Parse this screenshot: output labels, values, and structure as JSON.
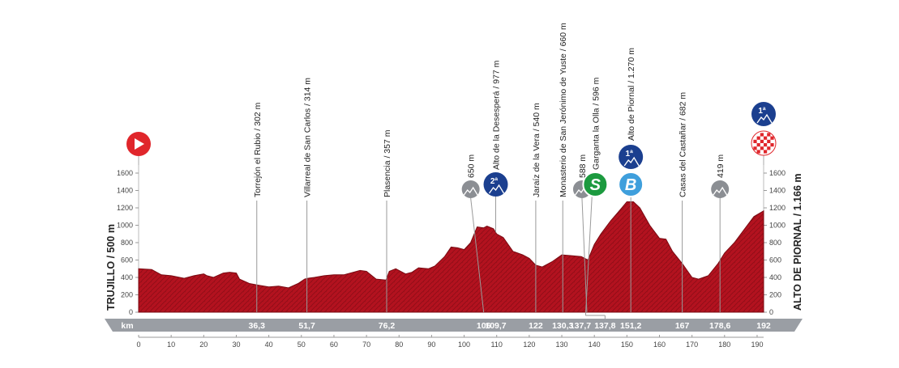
{
  "chart_data": {
    "type": "area",
    "title": "",
    "xlabel": "km",
    "ylabel": "",
    "xlim": [
      0,
      192
    ],
    "ylim": [
      0,
      1600
    ],
    "x_ticks": [
      0,
      10,
      20,
      30,
      40,
      50,
      60,
      70,
      80,
      90,
      100,
      110,
      120,
      130,
      140,
      150,
      160,
      170,
      180,
      190
    ],
    "y_ticks": [
      0,
      200,
      400,
      600,
      800,
      1000,
      1200,
      1400,
      1600
    ],
    "start_label": "TRUJILLO / 500 m",
    "finish_label": "ALTO DE PIORNAL / 1.166 m",
    "profile": {
      "x": [
        0,
        4,
        7,
        10,
        14,
        17,
        20,
        21,
        23,
        26,
        28,
        30,
        31,
        34,
        37,
        40,
        43,
        46,
        49,
        51,
        52,
        54,
        57,
        60,
        63,
        66,
        68,
        70,
        73,
        76,
        77,
        79,
        82,
        84,
        86,
        89,
        91,
        94,
        96,
        98,
        100,
        102,
        104,
        106,
        107,
        109,
        110,
        112,
        115,
        118,
        120,
        122,
        124,
        127,
        130,
        133,
        136,
        138,
        140,
        142,
        145,
        148,
        150,
        152,
        154,
        157,
        160,
        162,
        164,
        167,
        170,
        172,
        175,
        178,
        180,
        183,
        186,
        189,
        192
      ],
      "y": [
        500,
        490,
        430,
        420,
        390,
        420,
        440,
        420,
        400,
        450,
        460,
        450,
        380,
        330,
        310,
        290,
        300,
        280,
        330,
        380,
        390,
        400,
        420,
        430,
        430,
        460,
        480,
        470,
        380,
        370,
        470,
        500,
        440,
        460,
        510,
        500,
        530,
        640,
        750,
        740,
        720,
        800,
        980,
        970,
        990,
        960,
        900,
        860,
        700,
        660,
        620,
        540,
        520,
        580,
        660,
        650,
        640,
        600,
        780,
        900,
        1050,
        1180,
        1270,
        1270,
        1200,
        1000,
        850,
        840,
        700,
        560,
        400,
        380,
        420,
        560,
        680,
        800,
        950,
        1100,
        1166
      ]
    },
    "points": [
      {
        "km": 36.3,
        "name": "Torrejón el Rubio / 302 m",
        "km_label": "36,3",
        "type": "place"
      },
      {
        "km": 51.7,
        "name": "Villarreal de San Carlos / 314 m",
        "km_label": "51,7",
        "type": "place"
      },
      {
        "km": 76.2,
        "name": "Plasencia / 357 m",
        "km_label": "76,2",
        "type": "place"
      },
      {
        "km": 106,
        "name": "650 m",
        "km_label": "106",
        "type": "grey"
      },
      {
        "km": 109.7,
        "name": "Alto de la Desesperá / 977 m",
        "km_label": "109,7",
        "type": "cat2"
      },
      {
        "km": 122,
        "name": "Jaraíz de la Vera / 540 m",
        "km_label": "122",
        "type": "place"
      },
      {
        "km": 130.3,
        "name": "Monasterio de San Jerónimo de Yuste / 660 m",
        "km_label": "130,3",
        "type": "place"
      },
      {
        "km": 137.7,
        "name": "588 m",
        "km_label": "137,7",
        "type": "grey"
      },
      {
        "km": 137.8,
        "name": "Garganta la Olla / 596 m",
        "km_label": "137,8",
        "type": "sprint"
      },
      {
        "km": 151.2,
        "name": "Alto de Piornal / 1.270 m",
        "km_label": "151,2",
        "type": "cat1bonus"
      },
      {
        "km": 167,
        "name": "Casas del Castañar / 682 m",
        "km_label": "167",
        "type": "place"
      },
      {
        "km": 178.6,
        "name": "419 m",
        "km_label": "178,6",
        "type": "grey"
      },
      {
        "km": 192,
        "name": "",
        "km_label": "192",
        "type": "finish"
      }
    ],
    "badges": {
      "cat2": "2ª",
      "cat1": "1ª",
      "sprint": "S",
      "bonus": "B"
    }
  },
  "colors": {
    "profile_fill": "#b3121f",
    "profile_dark": "#7a0a12",
    "km_band": "#9a9ea4",
    "start_red": "#e0262b",
    "navy": "#1b3f8f",
    "grey_badge": "#8b8e93",
    "sprint_green": "#1c9a3f",
    "bonus_blue": "#3f9fdc"
  }
}
